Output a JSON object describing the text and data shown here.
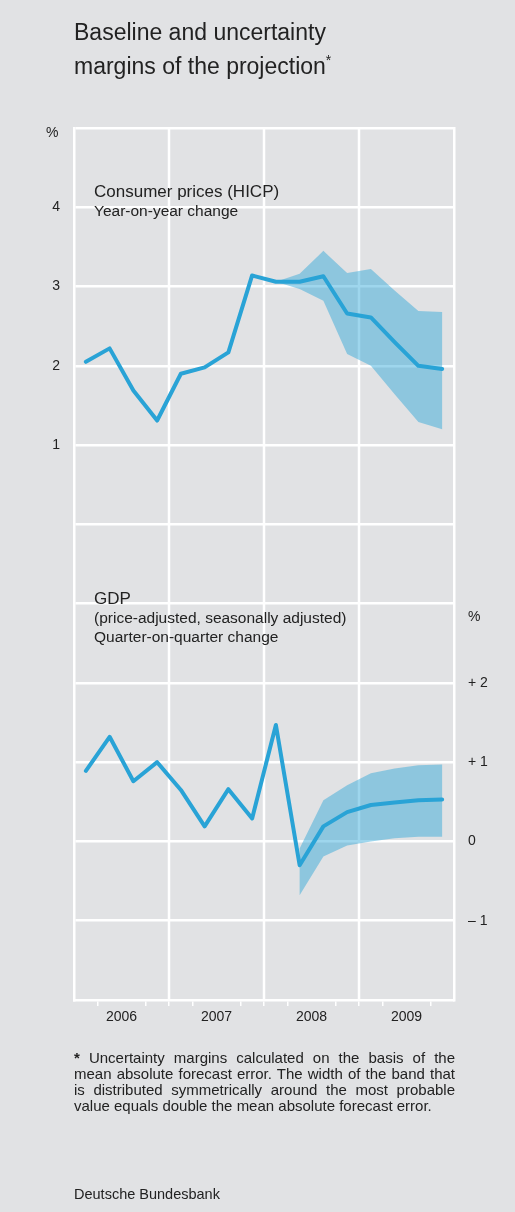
{
  "chart_data": {
    "type": "line",
    "title": "Baseline and uncertainty margins of the projection$^{*}$",
    "ylabel": "%",
    "y2label": "%",
    "x": [
      2006.125,
      2006.375,
      2006.625,
      2006.875,
      2007.125,
      2007.375,
      2007.625,
      2007.875,
      2008.125,
      2008.375,
      2008.625,
      2008.875,
      2009.125,
      2009.375,
      2009.625,
      2009.875
    ],
    "series": [
      {
        "color": "#29a3d6",
        "values": [
          2.05,
          2.22,
          1.69,
          1.31,
          1.9,
          1.98,
          2.17,
          3.14,
          3.06,
          3.06,
          3.13,
          2.66,
          2.61,
          2.3,
          2.0,
          1.96
        ],
        "lower": [
          null,
          null,
          null,
          null,
          null,
          null,
          null,
          null,
          3.06,
          2.97,
          2.82,
          2.15,
          2.0,
          1.64,
          1.29,
          1.2
        ],
        "upper": [
          null,
          null,
          null,
          null,
          null,
          null,
          null,
          null,
          3.06,
          3.16,
          3.45,
          3.17,
          3.22,
          2.95,
          2.69,
          2.68
        ]
      },
      {
        "color": "#29a3d6",
        "axis": "y2",
        "values": [
          0.89,
          1.32,
          0.76,
          1.0,
          0.65,
          0.19,
          0.66,
          0.29,
          1.47,
          -0.3,
          0.19,
          0.37,
          0.46,
          0.49,
          0.52,
          0.53
        ],
        "lower": [
          null,
          null,
          null,
          null,
          null,
          null,
          null,
          null,
          null,
          -0.68,
          -0.19,
          -0.05,
          0.0,
          0.04,
          0.06,
          0.06
        ],
        "upper": [
          null,
          null,
          null,
          null,
          null,
          null,
          null,
          null,
          null,
          -0.09,
          0.52,
          0.71,
          0.86,
          0.92,
          0.96,
          0.97
        ]
      }
    ],
    "annotations": [
      "Consumer prices (HICP)",
      "Year-on-year change",
      "GDP",
      "(price-adjusted, seasonally adjusted)",
      "Quarter-on-quarter change",
      "* Uncertainty margins calculated on the basis of the mean absolute forecast error. The width of the band that is distributed symmetrically around the most probable value equals double the mean absolute forecast error.",
      "Deutsche Bundesbank"
    ],
    "xlim": [
      2006,
      2010
    ],
    "xticks": [
      {
        "value": 2006.25,
        "label": null
      },
      {
        "value": 2006.5,
        "label": "2006"
      },
      {
        "value": 2006.75,
        "label": null
      },
      {
        "value": 2007,
        "label": null
      },
      {
        "value": 2007.25,
        "label": null
      },
      {
        "value": 2007.5,
        "label": "2007"
      },
      {
        "value": 2007.75,
        "label": null
      },
      {
        "value": 2008,
        "label": null
      },
      {
        "value": 2008.25,
        "label": null
      },
      {
        "value": 2008.5,
        "label": "2008"
      },
      {
        "value": 2008.75,
        "label": null
      },
      {
        "value": 2009,
        "label": null
      },
      {
        "value": 2009.25,
        "label": null
      },
      {
        "value": 2009.5,
        "label": "2009"
      },
      {
        "value": 2009.75,
        "label": null
      }
    ],
    "ylim": [
      -6,
      5
    ],
    "yticks": [
      {
        "value": -5,
        "label": null
      },
      {
        "value": -4,
        "label": null
      },
      {
        "value": -3,
        "label": null
      },
      {
        "value": -2,
        "label": null
      },
      {
        "value": -1,
        "label": null
      },
      {
        "value": 0,
        "label": null
      },
      1,
      2,
      3,
      4,
      {
        "value": 5,
        "label": null
      }
    ],
    "y2lim": [
      -2,
      9
    ],
    "y2ticks": [
      {
        "value": 2,
        "label": "+ 2"
      },
      {
        "value": 1,
        "label": "+ 1"
      },
      0,
      {
        "value": -1,
        "label": "– 1"
      }
    ],
    "grid": "y",
    "marker": "none",
    "ref_lines": [
      {
        "axis": "x",
        "value": 2007,
        "color": "#ffffff"
      },
      {
        "axis": "x",
        "value": 2008,
        "color": "#ffffff"
      },
      {
        "axis": "x",
        "value": 2009,
        "color": "#ffffff"
      }
    ]
  }
}
